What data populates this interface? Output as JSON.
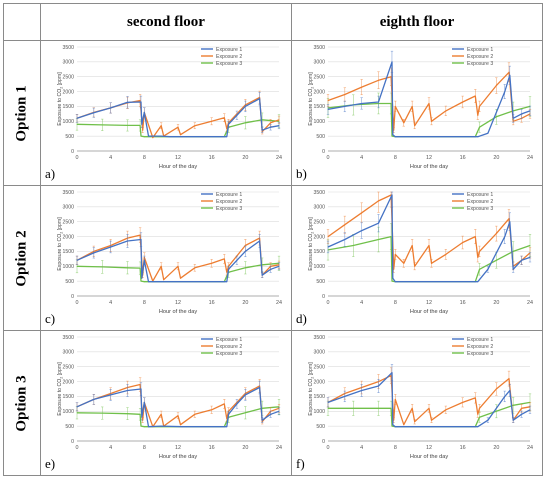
{
  "columns": [
    "second floor",
    "eighth floor"
  ],
  "rows": [
    "Option 1",
    "Option 2",
    "Option 3"
  ],
  "axis": {
    "xlabel": "Hour of the day",
    "ylabel": "Exposure to CO",
    "ylabel_sub": "2",
    "ylabel_unit": " [ppm]",
    "xticks": [
      "0",
      "4",
      "8",
      "12",
      "16",
      "20",
      "24"
    ],
    "yticks": [
      "0",
      "500",
      "1000",
      "1500",
      "2000",
      "2500",
      "3000",
      "3500"
    ]
  },
  "legend": [
    "Exposure 1",
    "Exposure 2",
    "Exposure 3"
  ],
  "colors": {
    "Exposure 1": "#4472c4",
    "Exposure 2": "#ed7d31",
    "Exposure 3": "#70c04a",
    "grid": "#dcdcdc"
  },
  "chart_data": [
    {
      "type": "line",
      "panel": "a)",
      "floor": "second floor",
      "option": "Option 1",
      "xlim": [
        0,
        24
      ],
      "ylim": [
        0,
        3500
      ],
      "grid": true,
      "legend_position": "top-right",
      "series": [
        {
          "name": "Exposure 1",
          "x": [
            0,
            2,
            4,
            6,
            7.6,
            7.7,
            8,
            8.5,
            10,
            11,
            12.5,
            13,
            15,
            17.8,
            18,
            19,
            20,
            21.7,
            22,
            23,
            24
          ],
          "y": [
            1100,
            1290,
            1450,
            1640,
            1650,
            900,
            1300,
            500,
            500,
            480,
            480,
            480,
            480,
            480,
            900,
            1200,
            1500,
            1760,
            700,
            800,
            850
          ]
        },
        {
          "name": "Exposure 2",
          "x": [
            0,
            2,
            4,
            6,
            7.5,
            7.8,
            8,
            9,
            10,
            10.3,
            12,
            12.3,
            14,
            16,
            17.5,
            17.8,
            18,
            20,
            21.7,
            22,
            23,
            24
          ],
          "y": [
            1100,
            1300,
            1450,
            1620,
            1700,
            700,
            1300,
            450,
            850,
            500,
            800,
            550,
            850,
            1000,
            1120,
            750,
            950,
            1550,
            1800,
            650,
            950,
            1050
          ]
        },
        {
          "name": "Exposure 3",
          "x": [
            0,
            3,
            6,
            7.5,
            7.6,
            8,
            17.5,
            18,
            20,
            22,
            24
          ],
          "y": [
            900,
            880,
            860,
            860,
            500,
            480,
            480,
            800,
            950,
            1050,
            1000
          ]
        }
      ]
    },
    {
      "type": "line",
      "panel": "b)",
      "floor": "eighth floor",
      "option": "Option 1",
      "xlim": [
        0,
        24
      ],
      "ylim": [
        0,
        3500
      ],
      "grid": true,
      "legend_position": "top-right",
      "series": [
        {
          "name": "Exposure 1",
          "x": [
            0,
            2,
            4,
            6,
            7.6,
            7.7,
            8,
            8.2,
            10,
            17.5,
            17.8,
            19,
            21,
            21.6,
            22,
            23,
            24
          ],
          "y": [
            1400,
            1500,
            1600,
            1650,
            3000,
            550,
            480,
            480,
            480,
            480,
            480,
            600,
            2000,
            2550,
            1100,
            1250,
            1350
          ]
        },
        {
          "name": "Exposure 2",
          "x": [
            0,
            2,
            4,
            6,
            7.5,
            7.8,
            8,
            9,
            10,
            10.3,
            12,
            12.3,
            14,
            16,
            17.5,
            17.8,
            18,
            20,
            21.5,
            22,
            23,
            24
          ],
          "y": [
            1700,
            1900,
            2150,
            2380,
            2500,
            700,
            1500,
            950,
            1500,
            850,
            1600,
            1000,
            1350,
            1650,
            1850,
            1200,
            1500,
            2200,
            2650,
            1000,
            1100,
            1250
          ]
        },
        {
          "name": "Exposure 3",
          "x": [
            0,
            3,
            6,
            7.5,
            7.6,
            8,
            17.5,
            18,
            20,
            22,
            24
          ],
          "y": [
            1450,
            1550,
            1600,
            1600,
            500,
            480,
            480,
            800,
            1150,
            1350,
            1500
          ]
        }
      ]
    },
    {
      "type": "line",
      "panel": "c)",
      "floor": "second floor",
      "option": "Option 2",
      "xlim": [
        0,
        24
      ],
      "ylim": [
        0,
        3500
      ],
      "grid": true,
      "legend_position": "top-right",
      "series": [
        {
          "name": "Exposure 1",
          "x": [
            0,
            2,
            4,
            6,
            7.6,
            7.7,
            8,
            8.5,
            10,
            17.8,
            18,
            19,
            20,
            21.7,
            22,
            23,
            24
          ],
          "y": [
            1200,
            1450,
            1650,
            1850,
            1900,
            600,
            1200,
            480,
            480,
            480,
            900,
            1200,
            1500,
            1850,
            700,
            900,
            1000
          ]
        },
        {
          "name": "Exposure 2",
          "x": [
            0,
            2,
            4,
            6,
            7.5,
            7.8,
            8,
            9,
            10,
            10.3,
            12,
            12.3,
            14,
            16,
            17.5,
            17.8,
            18,
            20,
            21.7,
            22,
            23,
            24
          ],
          "y": [
            1200,
            1500,
            1700,
            1950,
            2050,
            700,
            1300,
            500,
            1000,
            550,
            1000,
            600,
            950,
            1100,
            1250,
            800,
            1000,
            1700,
            1950,
            700,
            1000,
            1050
          ]
        },
        {
          "name": "Exposure 3",
          "x": [
            0,
            3,
            6,
            7.5,
            7.6,
            8,
            17.5,
            18,
            20,
            22,
            24
          ],
          "y": [
            1000,
            980,
            950,
            940,
            500,
            480,
            480,
            800,
            950,
            1050,
            1100
          ]
        }
      ]
    },
    {
      "type": "line",
      "panel": "d)",
      "floor": "eighth floor",
      "option": "Option 2",
      "xlim": [
        0,
        24
      ],
      "ylim": [
        0,
        3500
      ],
      "grid": true,
      "legend_position": "top-right",
      "series": [
        {
          "name": "Exposure 1",
          "x": [
            0,
            2,
            4,
            6,
            7.6,
            7.7,
            8,
            8.2,
            10,
            17.5,
            17.8,
            19,
            21,
            21.6,
            22,
            23,
            24
          ],
          "y": [
            1650,
            1900,
            2200,
            2450,
            3400,
            600,
            480,
            480,
            480,
            480,
            480,
            900,
            2000,
            2500,
            900,
            1200,
            1300
          ]
        },
        {
          "name": "Exposure 2",
          "x": [
            0,
            2,
            4,
            6,
            7.5,
            7.8,
            8,
            9,
            10,
            10.3,
            12,
            12.3,
            14,
            16,
            17.5,
            17.8,
            18,
            20,
            21.5,
            22,
            23,
            24
          ],
          "y": [
            2000,
            2400,
            2800,
            3200,
            3400,
            900,
            1400,
            1100,
            1700,
            1000,
            1700,
            1100,
            1400,
            1800,
            2000,
            1300,
            1500,
            2100,
            2600,
            1000,
            1200,
            1450
          ]
        },
        {
          "name": "Exposure 3",
          "x": [
            0,
            3,
            6,
            7.5,
            7.6,
            8,
            17.5,
            18,
            20,
            22,
            24
          ],
          "y": [
            1550,
            1700,
            1900,
            2000,
            500,
            480,
            480,
            900,
            1200,
            1500,
            1700
          ]
        }
      ]
    },
    {
      "type": "line",
      "panel": "e)",
      "floor": "second floor",
      "option": "Option 3",
      "xlim": [
        0,
        24
      ],
      "ylim": [
        0,
        3500
      ],
      "grid": true,
      "legend_position": "top-right",
      "series": [
        {
          "name": "Exposure 1",
          "x": [
            0,
            2,
            4,
            6,
            7.6,
            7.7,
            8,
            8.5,
            10,
            12.5,
            13,
            17.8,
            18,
            19,
            20,
            21.7,
            22,
            23,
            24
          ],
          "y": [
            1150,
            1400,
            1550,
            1700,
            1750,
            800,
            1300,
            480,
            500,
            480,
            480,
            480,
            900,
            1250,
            1550,
            1800,
            700,
            900,
            1000
          ]
        },
        {
          "name": "Exposure 2",
          "x": [
            0,
            2,
            4,
            6,
            7.5,
            7.8,
            8,
            9,
            10,
            10.3,
            12,
            12.3,
            14,
            16,
            17.5,
            17.8,
            18,
            20,
            21.7,
            22,
            23,
            24
          ],
          "y": [
            1150,
            1400,
            1600,
            1800,
            1900,
            700,
            1300,
            480,
            900,
            500,
            850,
            550,
            900,
            1050,
            1250,
            750,
            1000,
            1600,
            1850,
            650,
            1000,
            1100
          ]
        },
        {
          "name": "Exposure 3",
          "x": [
            0,
            3,
            6,
            7.5,
            7.6,
            8,
            17.5,
            18,
            20,
            22,
            24
          ],
          "y": [
            950,
            940,
            920,
            900,
            500,
            480,
            480,
            800,
            950,
            1100,
            1150
          ]
        }
      ]
    },
    {
      "type": "line",
      "panel": "f)",
      "floor": "eighth floor",
      "option": "Option 3",
      "xlim": [
        0,
        24
      ],
      "ylim": [
        0,
        3500
      ],
      "grid": true,
      "legend_position": "top-right",
      "series": [
        {
          "name": "Exposure 1",
          "x": [
            0,
            2,
            4,
            6,
            7.6,
            7.7,
            8,
            8.2,
            10,
            17.5,
            17.8,
            19,
            21,
            21.6,
            22,
            23,
            24
          ],
          "y": [
            1300,
            1500,
            1700,
            1850,
            2300,
            550,
            480,
            480,
            480,
            480,
            480,
            700,
            1500,
            1700,
            700,
            900,
            1050
          ]
        },
        {
          "name": "Exposure 2",
          "x": [
            0,
            2,
            4,
            6,
            7.5,
            7.8,
            8,
            9,
            10,
            10.3,
            12,
            12.3,
            14,
            16,
            17.5,
            17.8,
            18,
            20,
            21.5,
            22,
            23,
            24
          ],
          "y": [
            1300,
            1600,
            1800,
            2000,
            2200,
            700,
            1400,
            550,
            1100,
            650,
            1100,
            700,
            1050,
            1300,
            1450,
            900,
            1100,
            1750,
            2100,
            700,
            1100,
            1150
          ]
        },
        {
          "name": "Exposure 3",
          "x": [
            0,
            3,
            6,
            7.5,
            7.6,
            8,
            17.5,
            18,
            20,
            22,
            24
          ],
          "y": [
            1100,
            1100,
            1100,
            1100,
            500,
            480,
            480,
            800,
            1000,
            1200,
            1300
          ]
        }
      ]
    }
  ]
}
